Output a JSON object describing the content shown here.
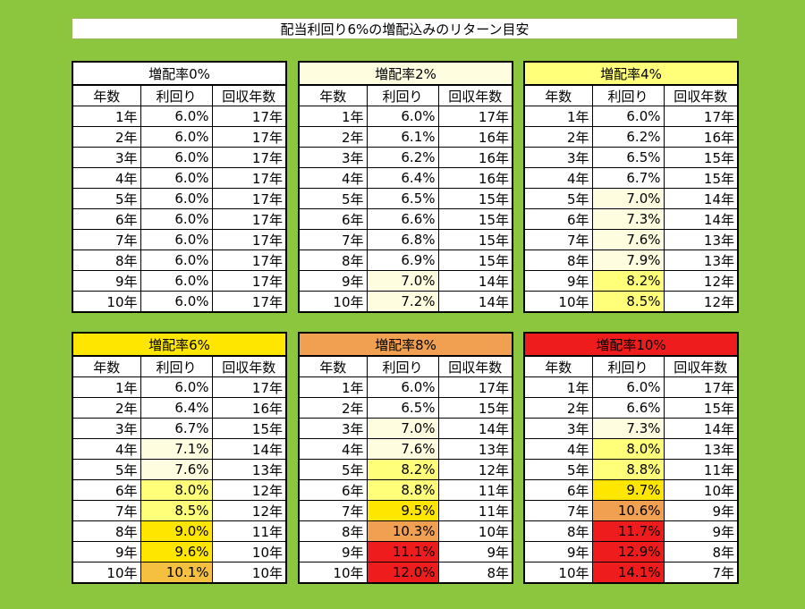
{
  "title": "配当利回り6%の増配込みのリターン目安",
  "columns": [
    "年数",
    "利回り",
    "回収年数"
  ],
  "colors": {
    "background": "#8cc63f",
    "c0": "#ffffff",
    "c1": "#fffde0",
    "c2": "#ffff7a",
    "c3": "#ffe600",
    "c4": "#f5c040",
    "c5": "#f0a050",
    "c6": "#ee1c1c"
  },
  "panels": [
    {
      "header": "増配率0%",
      "header_color": "c0",
      "rows": [
        {
          "year": "1年",
          "yield": "6.0%",
          "payback": "17年",
          "c": "c0"
        },
        {
          "year": "2年",
          "yield": "6.0%",
          "payback": "17年",
          "c": "c0"
        },
        {
          "year": "3年",
          "yield": "6.0%",
          "payback": "17年",
          "c": "c0"
        },
        {
          "year": "4年",
          "yield": "6.0%",
          "payback": "17年",
          "c": "c0"
        },
        {
          "year": "5年",
          "yield": "6.0%",
          "payback": "17年",
          "c": "c0"
        },
        {
          "year": "6年",
          "yield": "6.0%",
          "payback": "17年",
          "c": "c0"
        },
        {
          "year": "7年",
          "yield": "6.0%",
          "payback": "17年",
          "c": "c0"
        },
        {
          "year": "8年",
          "yield": "6.0%",
          "payback": "17年",
          "c": "c0"
        },
        {
          "year": "9年",
          "yield": "6.0%",
          "payback": "17年",
          "c": "c0"
        },
        {
          "year": "10年",
          "yield": "6.0%",
          "payback": "17年",
          "c": "c0"
        }
      ]
    },
    {
      "header": "増配率2%",
      "header_color": "c1",
      "rows": [
        {
          "year": "1年",
          "yield": "6.0%",
          "payback": "17年",
          "c": "c0"
        },
        {
          "year": "2年",
          "yield": "6.1%",
          "payback": "16年",
          "c": "c0"
        },
        {
          "year": "3年",
          "yield": "6.2%",
          "payback": "16年",
          "c": "c0"
        },
        {
          "year": "4年",
          "yield": "6.4%",
          "payback": "16年",
          "c": "c0"
        },
        {
          "year": "5年",
          "yield": "6.5%",
          "payback": "15年",
          "c": "c0"
        },
        {
          "year": "6年",
          "yield": "6.6%",
          "payback": "15年",
          "c": "c0"
        },
        {
          "year": "7年",
          "yield": "6.8%",
          "payback": "15年",
          "c": "c0"
        },
        {
          "year": "8年",
          "yield": "6.9%",
          "payback": "15年",
          "c": "c0"
        },
        {
          "year": "9年",
          "yield": "7.0%",
          "payback": "14年",
          "c": "c1"
        },
        {
          "year": "10年",
          "yield": "7.2%",
          "payback": "14年",
          "c": "c1"
        }
      ]
    },
    {
      "header": "増配率4%",
      "header_color": "c2",
      "rows": [
        {
          "year": "1年",
          "yield": "6.0%",
          "payback": "17年",
          "c": "c0"
        },
        {
          "year": "2年",
          "yield": "6.2%",
          "payback": "16年",
          "c": "c0"
        },
        {
          "year": "3年",
          "yield": "6.5%",
          "payback": "15年",
          "c": "c0"
        },
        {
          "year": "4年",
          "yield": "6.7%",
          "payback": "15年",
          "c": "c0"
        },
        {
          "year": "5年",
          "yield": "7.0%",
          "payback": "14年",
          "c": "c1"
        },
        {
          "year": "6年",
          "yield": "7.3%",
          "payback": "14年",
          "c": "c1"
        },
        {
          "year": "7年",
          "yield": "7.6%",
          "payback": "13年",
          "c": "c1"
        },
        {
          "year": "8年",
          "yield": "7.9%",
          "payback": "13年",
          "c": "c1"
        },
        {
          "year": "9年",
          "yield": "8.2%",
          "payback": "12年",
          "c": "c2"
        },
        {
          "year": "10年",
          "yield": "8.5%",
          "payback": "12年",
          "c": "c2"
        }
      ]
    },
    {
      "header": "増配率6%",
      "header_color": "c3",
      "rows": [
        {
          "year": "1年",
          "yield": "6.0%",
          "payback": "17年",
          "c": "c0"
        },
        {
          "year": "2年",
          "yield": "6.4%",
          "payback": "16年",
          "c": "c0"
        },
        {
          "year": "3年",
          "yield": "6.7%",
          "payback": "15年",
          "c": "c0"
        },
        {
          "year": "4年",
          "yield": "7.1%",
          "payback": "14年",
          "c": "c1"
        },
        {
          "year": "5年",
          "yield": "7.6%",
          "payback": "13年",
          "c": "c1"
        },
        {
          "year": "6年",
          "yield": "8.0%",
          "payback": "12年",
          "c": "c2"
        },
        {
          "year": "7年",
          "yield": "8.5%",
          "payback": "12年",
          "c": "c2"
        },
        {
          "year": "8年",
          "yield": "9.0%",
          "payback": "11年",
          "c": "c3"
        },
        {
          "year": "9年",
          "yield": "9.6%",
          "payback": "10年",
          "c": "c3"
        },
        {
          "year": "10年",
          "yield": "10.1%",
          "payback": "10年",
          "c": "c4"
        }
      ]
    },
    {
      "header": "増配率8%",
      "header_color": "c5",
      "rows": [
        {
          "year": "1年",
          "yield": "6.0%",
          "payback": "17年",
          "c": "c0"
        },
        {
          "year": "2年",
          "yield": "6.5%",
          "payback": "15年",
          "c": "c0"
        },
        {
          "year": "3年",
          "yield": "7.0%",
          "payback": "14年",
          "c": "c1"
        },
        {
          "year": "4年",
          "yield": "7.6%",
          "payback": "13年",
          "c": "c1"
        },
        {
          "year": "5年",
          "yield": "8.2%",
          "payback": "12年",
          "c": "c2"
        },
        {
          "year": "6年",
          "yield": "8.8%",
          "payback": "11年",
          "c": "c2"
        },
        {
          "year": "7年",
          "yield": "9.5%",
          "payback": "11年",
          "c": "c3"
        },
        {
          "year": "8年",
          "yield": "10.3%",
          "payback": "10年",
          "c": "c5"
        },
        {
          "year": "9年",
          "yield": "11.1%",
          "payback": "9年",
          "c": "c6"
        },
        {
          "year": "10年",
          "yield": "12.0%",
          "payback": "8年",
          "c": "c6"
        }
      ]
    },
    {
      "header": "増配率10%",
      "header_color": "c6",
      "rows": [
        {
          "year": "1年",
          "yield": "6.0%",
          "payback": "17年",
          "c": "c0"
        },
        {
          "year": "2年",
          "yield": "6.6%",
          "payback": "15年",
          "c": "c0"
        },
        {
          "year": "3年",
          "yield": "7.3%",
          "payback": "14年",
          "c": "c1"
        },
        {
          "year": "4年",
          "yield": "8.0%",
          "payback": "13年",
          "c": "c2"
        },
        {
          "year": "5年",
          "yield": "8.8%",
          "payback": "11年",
          "c": "c2"
        },
        {
          "year": "6年",
          "yield": "9.7%",
          "payback": "10年",
          "c": "c3"
        },
        {
          "year": "7年",
          "yield": "10.6%",
          "payback": "9年",
          "c": "c5"
        },
        {
          "year": "8年",
          "yield": "11.7%",
          "payback": "9年",
          "c": "c6"
        },
        {
          "year": "9年",
          "yield": "12.9%",
          "payback": "8年",
          "c": "c6"
        },
        {
          "year": "10年",
          "yield": "14.1%",
          "payback": "7年",
          "c": "c6"
        }
      ]
    }
  ]
}
